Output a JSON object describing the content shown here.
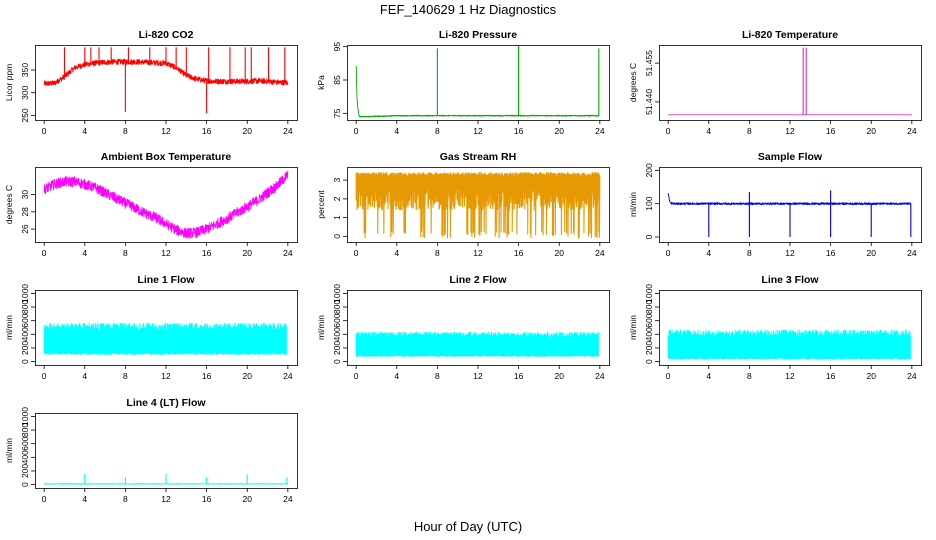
{
  "figure": {
    "title": "FEF_140629  1 Hz Diagnostics",
    "xlabel": "Hour of Day (UTC)"
  },
  "chart_data": [
    {
      "type": "line",
      "title": "Li-820 CO2",
      "ylabel": "Licor ppm",
      "color": "#ff0000",
      "xlim": [
        0,
        24
      ],
      "ylim": [
        240,
        405
      ],
      "xticks": [
        0,
        4,
        8,
        12,
        16,
        20,
        24
      ],
      "yticks": [
        250,
        300,
        350
      ],
      "series": [
        {
          "x": [
            0,
            1,
            2,
            3,
            4,
            5,
            6,
            7,
            8,
            9,
            10,
            11,
            12,
            13,
            14,
            15,
            16,
            17,
            18,
            19,
            20,
            21,
            22,
            23,
            24
          ],
          "values": [
            320,
            321,
            335,
            355,
            362,
            365,
            367,
            368,
            368,
            368,
            367,
            366,
            365,
            355,
            338,
            330,
            326,
            325,
            325,
            325,
            325,
            326,
            325,
            323,
            322
          ]
        }
      ],
      "spikes": [
        {
          "x": 2.0,
          "y": 400
        },
        {
          "x": 4.0,
          "y": 400
        },
        {
          "x": 4.6,
          "y": 400
        },
        {
          "x": 5.4,
          "y": 400
        },
        {
          "x": 6.6,
          "y": 400
        },
        {
          "x": 8.0,
          "y": 258
        },
        {
          "x": 8.3,
          "y": 400
        },
        {
          "x": 10.4,
          "y": 400
        },
        {
          "x": 12.0,
          "y": 400
        },
        {
          "x": 13.0,
          "y": 400
        },
        {
          "x": 14.0,
          "y": 400
        },
        {
          "x": 16.0,
          "y": 255
        },
        {
          "x": 16.2,
          "y": 400
        },
        {
          "x": 18.3,
          "y": 400
        },
        {
          "x": 19.8,
          "y": 400
        },
        {
          "x": 20.4,
          "y": 400
        },
        {
          "x": 22.1,
          "y": 400
        },
        {
          "x": 23.7,
          "y": 400
        }
      ],
      "noise": 6
    },
    {
      "type": "line",
      "title": "Li-820 Pressure",
      "ylabel": "kPa",
      "color": "#00aa00",
      "xlim": [
        0,
        24
      ],
      "ylim": [
        73,
        95.5
      ],
      "xticks": [
        0,
        4,
        8,
        12,
        16,
        20,
        24
      ],
      "yticks": [
        75,
        85,
        95
      ],
      "series": [
        {
          "x": [
            0,
            0.1,
            0.3,
            1,
            4,
            8,
            12,
            16,
            20,
            23.9
          ],
          "values": [
            89,
            78,
            74,
            74,
            74.3,
            74.3,
            74.3,
            74.3,
            74.3,
            74.3
          ]
        }
      ],
      "spikes": [
        {
          "x": 8.0,
          "y": 94.5
        },
        {
          "x": 16.0,
          "y": 95.3
        },
        {
          "x": 23.9,
          "y": 94.5
        }
      ],
      "noise": 0.15
    },
    {
      "type": "line",
      "title": "Li-820 Temperature",
      "ylabel": "degrees C",
      "color": "#cc33cc",
      "xlim": [
        0,
        24
      ],
      "ylim": [
        51.433,
        51.462
      ],
      "xticks": [
        0,
        4,
        8,
        12,
        16,
        20,
        24
      ],
      "yticks": [
        51.44,
        51.455
      ],
      "ytick_labels": [
        "51.440",
        "51.455"
      ],
      "series": [
        {
          "x": [
            0,
            24
          ],
          "values": [
            51.435,
            51.435
          ]
        }
      ],
      "spikes": [
        {
          "x": 13.3,
          "y": 51.461
        },
        {
          "x": 13.6,
          "y": 51.461
        }
      ],
      "noise": 0
    },
    {
      "type": "line",
      "title": "Ambient Box Temperature",
      "ylabel": "degrees C",
      "color": "#ff00ff",
      "xlim": [
        0,
        24
      ],
      "ylim": [
        24.5,
        33.2
      ],
      "xticks": [
        0,
        4,
        8,
        12,
        16,
        20,
        24
      ],
      "yticks": [
        26,
        28,
        30
      ],
      "series": [
        {
          "x": [
            0,
            1,
            2,
            3,
            4,
            5,
            6,
            7,
            8,
            9,
            10,
            11,
            12,
            13,
            14,
            15,
            16,
            17,
            18,
            19,
            20,
            21,
            22,
            23,
            24
          ],
          "values": [
            30.6,
            31.2,
            31.5,
            31.5,
            31.2,
            30.8,
            30.2,
            29.6,
            29.0,
            28.4,
            27.8,
            27.3,
            26.6,
            25.9,
            25.5,
            25.6,
            26.0,
            26.6,
            27.2,
            27.9,
            28.6,
            29.3,
            30.2,
            31.1,
            32.3
          ]
        }
      ],
      "spikes": [],
      "noise": 0.6
    },
    {
      "type": "line",
      "title": "Gas Stream RH",
      "ylabel": "percent",
      "color": "#e69900",
      "xlim": [
        0,
        24
      ],
      "ylim": [
        -0.3,
        3.7
      ],
      "xticks": [
        0,
        4,
        8,
        12,
        16,
        20,
        24
      ],
      "yticks": [
        0,
        1,
        2,
        3
      ],
      "series": [
        {
          "x": [
            0,
            24
          ],
          "values": [
            3.4,
            3.4
          ]
        }
      ],
      "spikes": [],
      "noise": 0.2,
      "band_low": 0.3
    },
    {
      "type": "line",
      "title": "Sample Flow",
      "ylabel": "ml/min",
      "color": "#0000ee",
      "xlim": [
        0,
        24
      ],
      "ylim": [
        -15,
        210
      ],
      "xticks": [
        0,
        4,
        8,
        12,
        16,
        20,
        24
      ],
      "yticks": [
        0,
        100,
        200
      ],
      "series": [
        {
          "x": [
            0,
            0.2,
            0.5,
            4,
            8,
            12,
            16,
            20,
            23.9
          ],
          "values": [
            130,
            102,
            100,
            100,
            100,
            100,
            100,
            100,
            100
          ]
        }
      ],
      "spikes": [
        {
          "x": 4.0,
          "y": 0
        },
        {
          "x": 8.0,
          "y": 0
        },
        {
          "x": 8.0,
          "y": 135
        },
        {
          "x": 12.0,
          "y": 0
        },
        {
          "x": 16.0,
          "y": 0
        },
        {
          "x": 16.0,
          "y": 140
        },
        {
          "x": 20.0,
          "y": 0
        },
        {
          "x": 23.9,
          "y": 0
        }
      ],
      "noise": 3
    },
    {
      "type": "area",
      "title": "Line 1 Flow",
      "ylabel": "ml/min",
      "color": "#00ffff",
      "xlim": [
        0,
        24
      ],
      "ylim": [
        -50,
        1050
      ],
      "xticks": [
        0,
        4,
        8,
        12,
        16,
        20,
        24
      ],
      "yticks": [
        0,
        200,
        400,
        600,
        800,
        1000
      ],
      "series": [
        {
          "x": [
            0,
            24
          ],
          "low": 100,
          "high": 570
        }
      ],
      "gaps": [
        4,
        8,
        12,
        16,
        20
      ],
      "noise": 40
    },
    {
      "type": "area",
      "title": "Line 2 Flow",
      "ylabel": "ml/min",
      "color": "#00ffff",
      "xlim": [
        0,
        24
      ],
      "ylim": [
        -50,
        1050
      ],
      "xticks": [
        0,
        4,
        8,
        12,
        16,
        20,
        24
      ],
      "yticks": [
        0,
        200,
        400,
        600,
        800,
        1000
      ],
      "series": [
        {
          "x": [
            0,
            24
          ],
          "low": 70,
          "high": 440
        }
      ],
      "gaps": [],
      "noise": 30
    },
    {
      "type": "area",
      "title": "Line 3 Flow",
      "ylabel": "ml/min",
      "color": "#00ffff",
      "xlim": [
        0,
        24
      ],
      "ylim": [
        -50,
        1050
      ],
      "xticks": [
        0,
        4,
        8,
        12,
        16,
        20,
        24
      ],
      "yticks": [
        0,
        200,
        400,
        600,
        800,
        1000
      ],
      "series": [
        {
          "x": [
            0,
            24
          ],
          "low": 30,
          "high": 470
        }
      ],
      "gaps": [],
      "noise": 40
    },
    {
      "type": "line",
      "title": "Line 4 (LT) Flow",
      "ylabel": "ml/min",
      "color": "#00ffff",
      "xlim": [
        0,
        24
      ],
      "ylim": [
        -50,
        1050
      ],
      "xticks": [
        0,
        4,
        8,
        12,
        16,
        20,
        24
      ],
      "yticks": [
        0,
        200,
        400,
        600,
        800,
        1000
      ],
      "series": [
        {
          "x": [
            0,
            24
          ],
          "values": [
            10,
            10
          ]
        }
      ],
      "spikes": [
        {
          "x": 4.0,
          "y": 160
        },
        {
          "x": 8.0,
          "y": 110
        },
        {
          "x": 12.0,
          "y": 160
        },
        {
          "x": 16.0,
          "y": 110
        },
        {
          "x": 20.0,
          "y": 150
        },
        {
          "x": 23.9,
          "y": 110
        }
      ],
      "noise": 4
    }
  ]
}
